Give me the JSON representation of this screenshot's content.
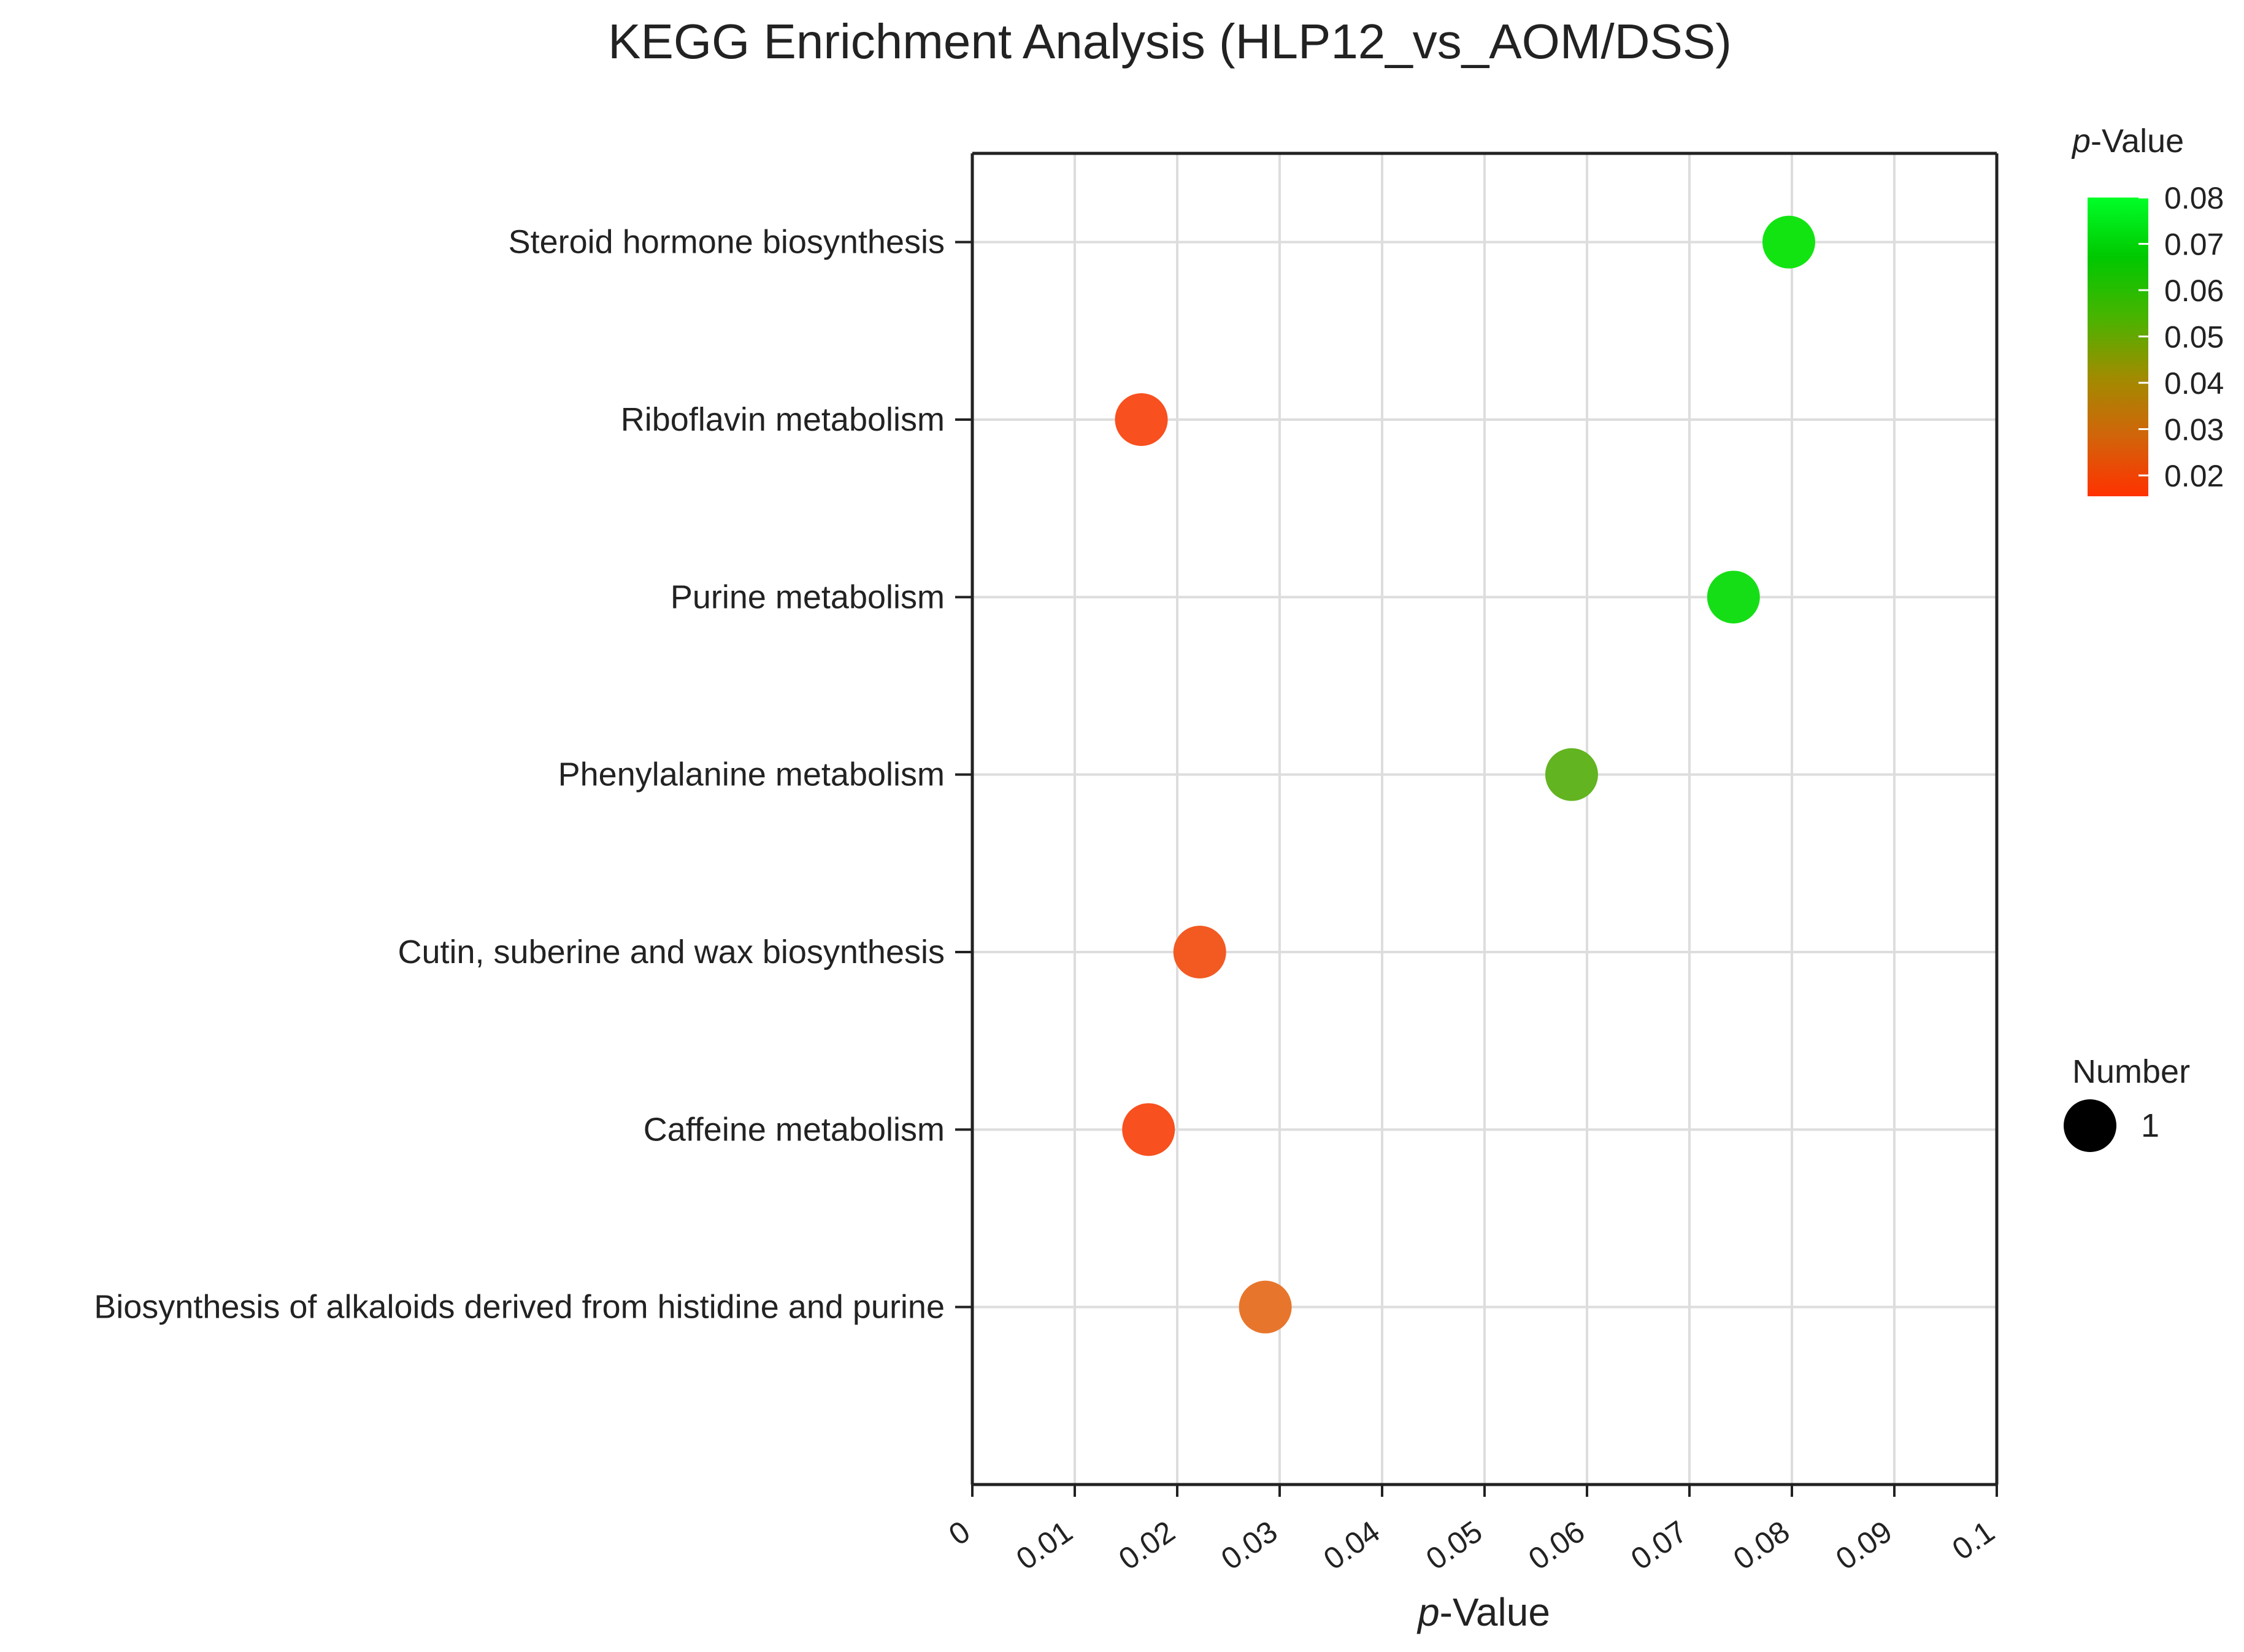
{
  "chart_data": {
    "type": "scatter",
    "title": "KEGG Enrichment Analysis (HLP12_vs_AOM/DSS)",
    "xlabel": {
      "italic": "p",
      "rest": "-Value"
    },
    "ylabel": "",
    "xlim": [
      0,
      0.1
    ],
    "xticks": [
      "0",
      "0.01",
      "0.02",
      "0.03",
      "0.04",
      "0.05",
      "0.06",
      "0.07",
      "0.08",
      "0.09",
      "0.1"
    ],
    "grid": true,
    "points": [
      {
        "pathway": "Steroid hormone biosynthesis",
        "p_value": 0.0797,
        "number": 1,
        "color": "#12e412"
      },
      {
        "pathway": "Riboflavin metabolism",
        "p_value": 0.0165,
        "number": 1,
        "color": "#f8501e"
      },
      {
        "pathway": "Purine metabolism",
        "p_value": 0.0743,
        "number": 1,
        "color": "#16de16"
      },
      {
        "pathway": "Phenylalanine metabolism",
        "p_value": 0.0585,
        "number": 1,
        "color": "#62b420"
      },
      {
        "pathway": "Cutin, suberine and wax biosynthesis",
        "p_value": 0.0222,
        "number": 1,
        "color": "#f25a22"
      },
      {
        "pathway": "Caffeine metabolism",
        "p_value": 0.0172,
        "number": 1,
        "color": "#f8501e"
      },
      {
        "pathway": "Biosynthesis of alkaloids derived from histidine and purine",
        "p_value": 0.0286,
        "number": 1,
        "color": "#e7762c"
      }
    ],
    "color_legend": {
      "title": {
        "italic": "p",
        "rest": "-Value"
      },
      "ticks": [
        "0.08",
        "0.07",
        "0.06",
        "0.05",
        "0.04",
        "0.03",
        "0.02"
      ],
      "range": [
        0.0155,
        0.08
      ],
      "gradient": [
        "#00ff28",
        "#00c800",
        "#48b400",
        "#a08c00",
        "#d2640a",
        "#ff3200"
      ],
      "placement": "top-right"
    },
    "size_legend": {
      "title": "Number",
      "entries": [
        {
          "label": "1",
          "value": 1,
          "color": "#000000"
        }
      ],
      "placement": "right"
    }
  }
}
